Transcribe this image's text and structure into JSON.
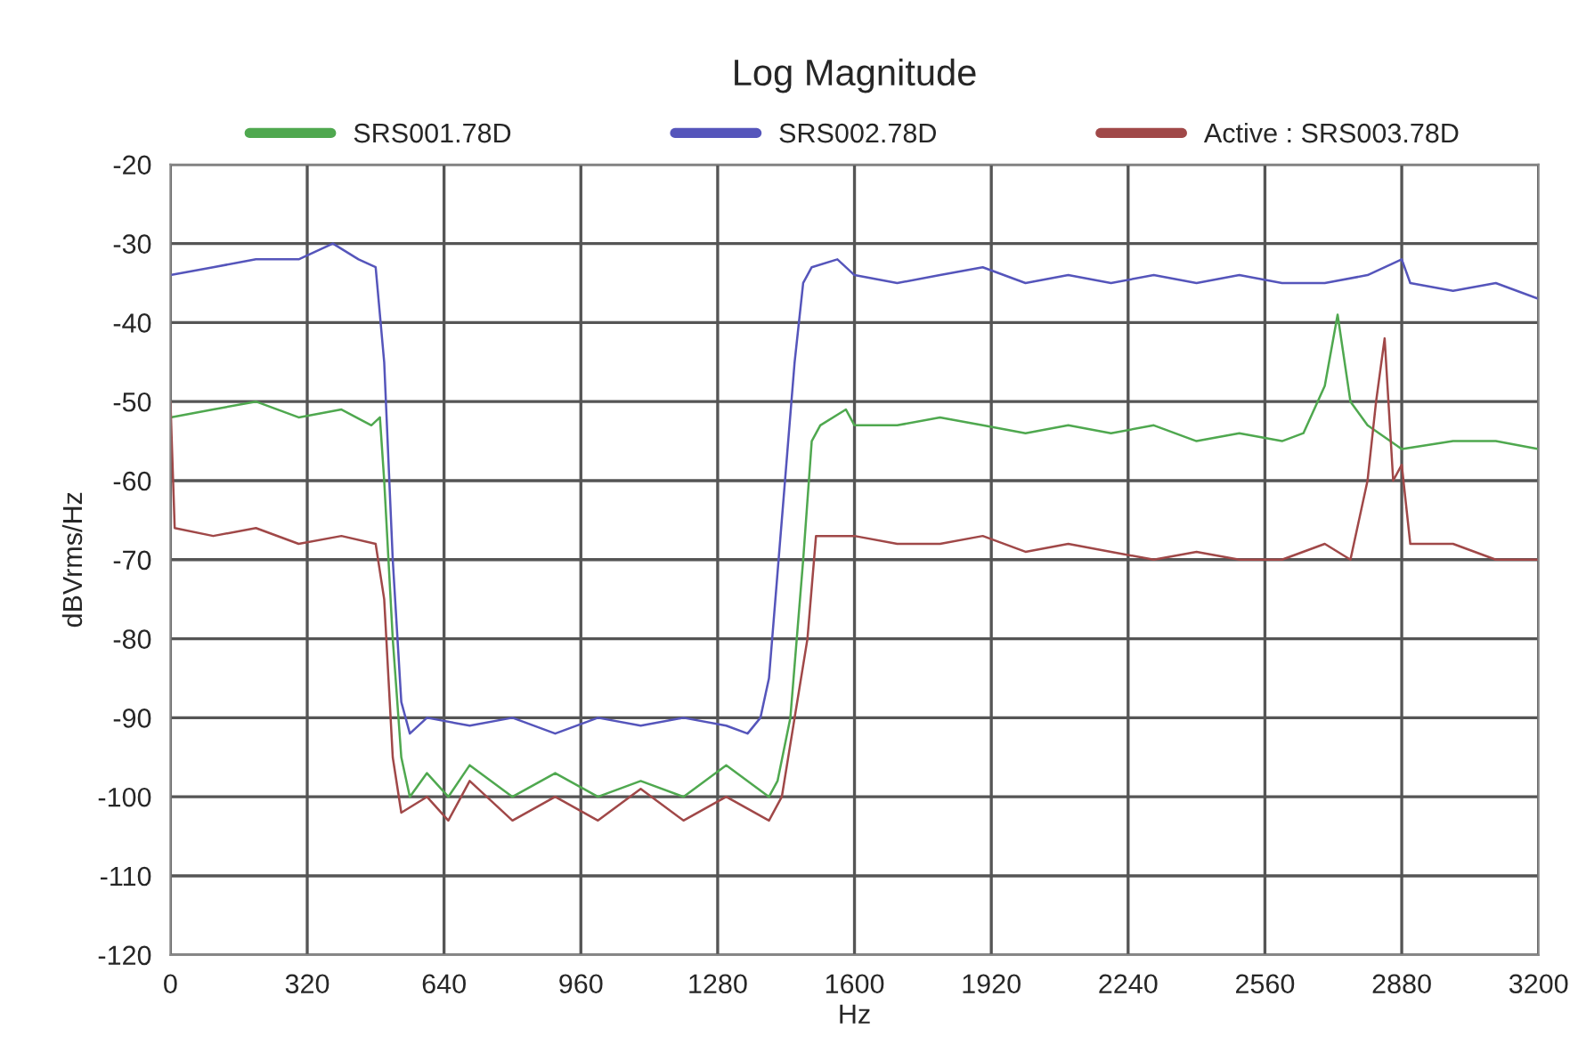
{
  "chart_data": {
    "type": "line",
    "title": "Log Magnitude",
    "xlabel": "Hz",
    "ylabel": "dBVrms/Hz",
    "xlim": [
      0,
      3200
    ],
    "xticks": [
      0,
      320,
      640,
      960,
      1280,
      1600,
      1920,
      2240,
      2560,
      2880,
      3200
    ],
    "ylim": [
      -120,
      -20
    ],
    "yticks": [
      -120,
      -110,
      -100,
      -90,
      -80,
      -70,
      -60,
      -50,
      -40,
      -30,
      -20
    ],
    "grid": true,
    "legend": "top",
    "line_style": "solid",
    "series": [
      {
        "name": "SRS001.78D",
        "color": "#4fa84f",
        "x": [
          0,
          100,
          200,
          300,
          400,
          470,
          490,
          500,
          520,
          540,
          560,
          600,
          650,
          700,
          800,
          900,
          1000,
          1100,
          1200,
          1300,
          1400,
          1420,
          1450,
          1480,
          1500,
          1520,
          1580,
          1600,
          1700,
          1800,
          1900,
          2000,
          2100,
          2200,
          2300,
          2400,
          2500,
          2600,
          2650,
          2700,
          2730,
          2760,
          2800,
          2880,
          3000,
          3100,
          3200
        ],
        "values": [
          -52,
          -51,
          -50,
          -52,
          -51,
          -53,
          -52,
          -60,
          -80,
          -95,
          -100,
          -97,
          -100,
          -96,
          -100,
          -97,
          -100,
          -98,
          -100,
          -96,
          -100,
          -98,
          -90,
          -70,
          -55,
          -53,
          -51,
          -53,
          -53,
          -52,
          -53,
          -54,
          -53,
          -54,
          -53,
          -55,
          -54,
          -55,
          -54,
          -48,
          -39,
          -50,
          -53,
          -56,
          -55,
          -55,
          -56
        ]
      },
      {
        "name": "SRS002.78D",
        "color": "#5555bb",
        "x": [
          0,
          100,
          200,
          300,
          380,
          440,
          480,
          500,
          520,
          540,
          560,
          600,
          700,
          800,
          900,
          1000,
          1100,
          1200,
          1300,
          1350,
          1380,
          1400,
          1430,
          1460,
          1480,
          1500,
          1560,
          1600,
          1700,
          1800,
          1900,
          2000,
          2100,
          2200,
          2300,
          2400,
          2500,
          2600,
          2700,
          2800,
          2880,
          2900,
          3000,
          3100,
          3200
        ],
        "values": [
          -34,
          -33,
          -32,
          -32,
          -30,
          -32,
          -33,
          -45,
          -70,
          -88,
          -92,
          -90,
          -91,
          -90,
          -92,
          -90,
          -91,
          -90,
          -91,
          -92,
          -90,
          -85,
          -65,
          -45,
          -35,
          -33,
          -32,
          -34,
          -35,
          -34,
          -33,
          -35,
          -34,
          -35,
          -34,
          -35,
          -34,
          -35,
          -35,
          -34,
          -32,
          -35,
          -36,
          -35,
          -37
        ]
      },
      {
        "name": "Active : SRS003.78D",
        "color": "#a04848",
        "x": [
          0,
          10,
          100,
          200,
          300,
          400,
          480,
          500,
          520,
          540,
          600,
          650,
          700,
          800,
          900,
          1000,
          1100,
          1200,
          1300,
          1400,
          1430,
          1460,
          1490,
          1510,
          1600,
          1700,
          1800,
          1900,
          2000,
          2100,
          2200,
          2300,
          2400,
          2500,
          2600,
          2700,
          2760,
          2800,
          2820,
          2840,
          2860,
          2880,
          2900,
          3000,
          3100,
          3200
        ],
        "values": [
          -50,
          -66,
          -67,
          -66,
          -68,
          -67,
          -68,
          -75,
          -95,
          -102,
          -100,
          -103,
          -98,
          -103,
          -100,
          -103,
          -99,
          -103,
          -100,
          -103,
          -100,
          -90,
          -80,
          -67,
          -67,
          -68,
          -68,
          -67,
          -69,
          -68,
          -69,
          -70,
          -69,
          -70,
          -70,
          -68,
          -70,
          -60,
          -50,
          -42,
          -60,
          -58,
          -68,
          -68,
          -70,
          -70
        ]
      }
    ]
  }
}
